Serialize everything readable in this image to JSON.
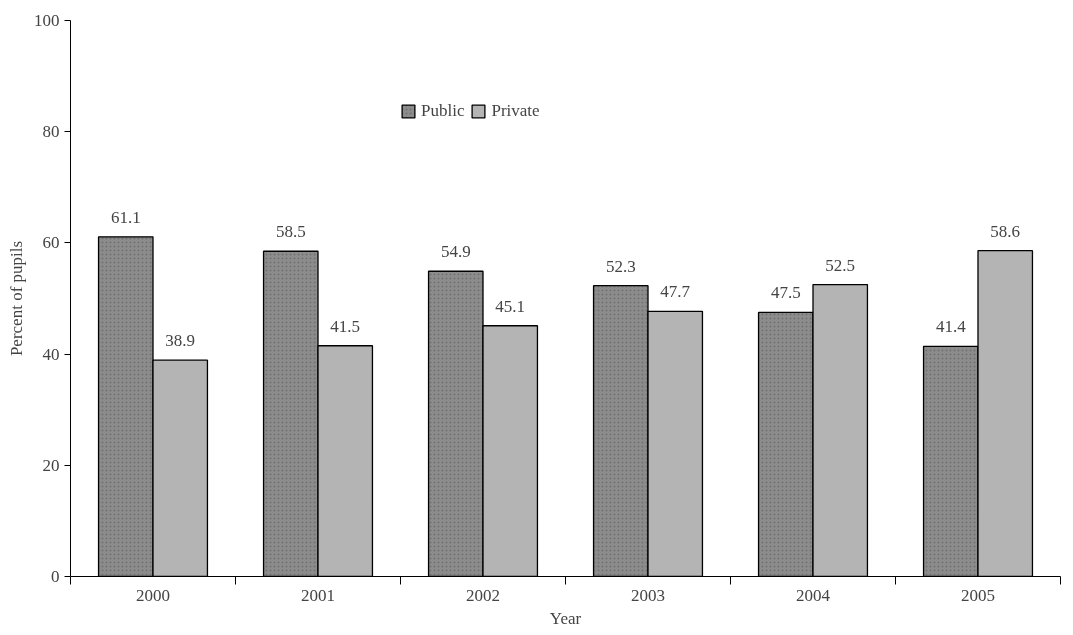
{
  "chart_data": {
    "type": "bar",
    "xlabel": "Year",
    "ylabel": "Percent of pupils",
    "categories": [
      "2000",
      "2001",
      "2002",
      "2003",
      "2004",
      "2005"
    ],
    "series": [
      {
        "name": "Public",
        "color": "#8c8c8c",
        "values": [
          61.1,
          58.5,
          54.9,
          52.3,
          47.5,
          41.4
        ]
      },
      {
        "name": "Private",
        "color": "#b4b4b4",
        "values": [
          38.9,
          41.5,
          45.1,
          47.7,
          52.5,
          58.6
        ]
      }
    ],
    "ylim": [
      0,
      100
    ],
    "yticks": [
      0,
      20,
      40,
      60,
      80,
      100
    ],
    "grid": false,
    "legend": "top",
    "data_labels": true
  }
}
